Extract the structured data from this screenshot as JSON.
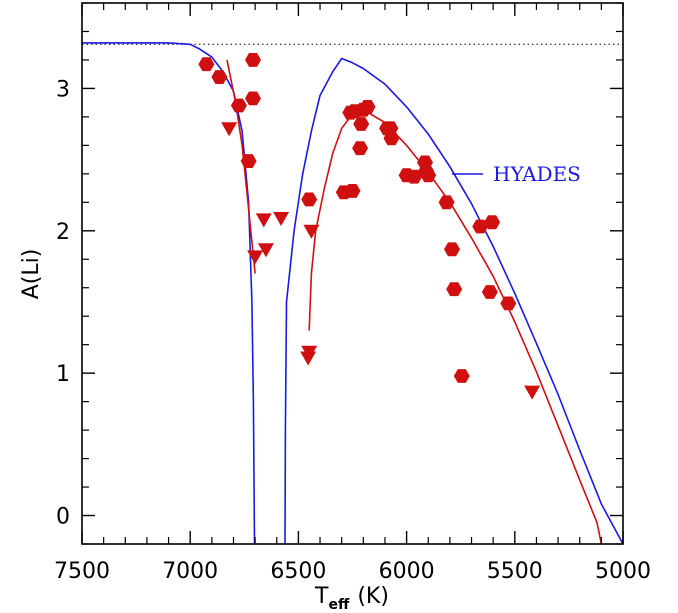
{
  "chart_data": {
    "type": "scatter",
    "xlabel": "T",
    "xlabel_subscript": "eff",
    "xlabel_unit": "(K)",
    "ylabel": "A(Li)",
    "xlim": [
      7500,
      5000
    ],
    "ylim": [
      -0.2,
      3.6
    ],
    "x_reversed": true,
    "x_ticks": [
      7500,
      7000,
      6500,
      6000,
      5500,
      5000
    ],
    "x_tick_labels": [
      "7500",
      "7000",
      "6500",
      "6000",
      "5500",
      "5000"
    ],
    "y_ticks": [
      0,
      1,
      2,
      3
    ],
    "y_tick_labels": [
      "0",
      "1",
      "2",
      "3"
    ],
    "colors": {
      "model_blue": "#1a1ae6",
      "model_red": "#d01010",
      "data_red": "#d01010",
      "reference": "#000000"
    },
    "reference_line": {
      "style": "dotted",
      "y": 3.31
    },
    "series": [
      {
        "name": "HYADES",
        "kind": "model-line",
        "color": "#1a1ae6",
        "segments": [
          [
            [
              7500,
              3.32
            ],
            [
              7300,
              3.32
            ],
            [
              7100,
              3.32
            ],
            [
              7000,
              3.31
            ],
            [
              6960,
              3.28
            ],
            [
              6900,
              3.22
            ],
            [
              6850,
              3.12
            ],
            [
              6800,
              2.98
            ],
            [
              6760,
              2.7
            ],
            [
              6730,
              2.2
            ],
            [
              6715,
              1.5
            ],
            [
              6708,
              0.8
            ],
            [
              6703,
              -0.2
            ]
          ],
          [
            [
              6562,
              -0.2
            ],
            [
              6560,
              0.6
            ],
            [
              6555,
              1.5
            ],
            [
              6520,
              2.0
            ],
            [
              6480,
              2.4
            ],
            [
              6440,
              2.7
            ],
            [
              6400,
              2.95
            ],
            [
              6340,
              3.12
            ],
            [
              6300,
              3.21
            ],
            [
              6250,
              3.18
            ],
            [
              6200,
              3.14
            ],
            [
              6100,
              3.03
            ],
            [
              6000,
              2.87
            ],
            [
              5900,
              2.68
            ],
            [
              5800,
              2.45
            ],
            [
              5700,
              2.19
            ],
            [
              5600,
              1.89
            ],
            [
              5500,
              1.56
            ],
            [
              5400,
              1.21
            ],
            [
              5300,
              0.85
            ],
            [
              5200,
              0.46
            ],
            [
              5100,
              0.08
            ],
            [
              5000,
              -0.2
            ]
          ]
        ]
      },
      {
        "kind": "model-line",
        "color": "#d01010",
        "segments": [
          [
            [
              6830,
              3.2
            ],
            [
              6790,
              2.9
            ],
            [
              6760,
              2.6
            ],
            [
              6740,
              2.3
            ],
            [
              6720,
              2.0
            ],
            [
              6700,
              1.7
            ]
          ],
          [
            [
              6450,
              1.3
            ],
            [
              6440,
              1.7
            ],
            [
              6420,
              2.0
            ],
            [
              6380,
              2.3
            ],
            [
              6340,
              2.55
            ],
            [
              6300,
              2.72
            ],
            [
              6250,
              2.82
            ],
            [
              6200,
              2.85
            ],
            [
              6100,
              2.76
            ],
            [
              6000,
              2.6
            ],
            [
              5900,
              2.41
            ],
            [
              5800,
              2.2
            ],
            [
              5700,
              1.95
            ],
            [
              5600,
              1.68
            ],
            [
              5500,
              1.36
            ],
            [
              5400,
              1.01
            ],
            [
              5300,
              0.63
            ],
            [
              5200,
              0.25
            ],
            [
              5120,
              -0.05
            ],
            [
              5100,
              -0.2
            ]
          ]
        ]
      }
    ],
    "detections": [
      [
        6925,
        3.17
      ],
      [
        6865,
        3.08
      ],
      [
        6775,
        2.88
      ],
      [
        6710,
        2.93
      ],
      [
        6710,
        3.2
      ],
      [
        6730,
        2.49
      ],
      [
        6450,
        2.22
      ],
      [
        6290,
        2.27
      ],
      [
        6250,
        2.28
      ],
      [
        6260,
        2.83
      ],
      [
        6240,
        2.84
      ],
      [
        6200,
        2.85
      ],
      [
        6180,
        2.87
      ],
      [
        6210,
        2.75
      ],
      [
        6215,
        2.58
      ],
      [
        6090,
        2.72
      ],
      [
        6075,
        2.72
      ],
      [
        6070,
        2.65
      ],
      [
        6000,
        2.39
      ],
      [
        5965,
        2.38
      ],
      [
        5915,
        2.48
      ],
      [
        5910,
        2.42
      ],
      [
        5900,
        2.39
      ],
      [
        5815,
        2.2
      ],
      [
        5790,
        1.87
      ],
      [
        5780,
        1.59
      ],
      [
        5745,
        0.98
      ],
      [
        5660,
        2.03
      ],
      [
        5605,
        2.06
      ],
      [
        5615,
        1.57
      ],
      [
        5530,
        1.49
      ]
    ],
    "upper_limits": [
      [
        6820,
        2.72
      ],
      [
        6700,
        1.82
      ],
      [
        6650,
        1.87
      ],
      [
        6660,
        2.08
      ],
      [
        6580,
        2.09
      ],
      [
        6440,
        2.0
      ],
      [
        6450,
        1.15
      ],
      [
        6455,
        1.11
      ],
      [
        5420,
        0.87
      ]
    ]
  }
}
